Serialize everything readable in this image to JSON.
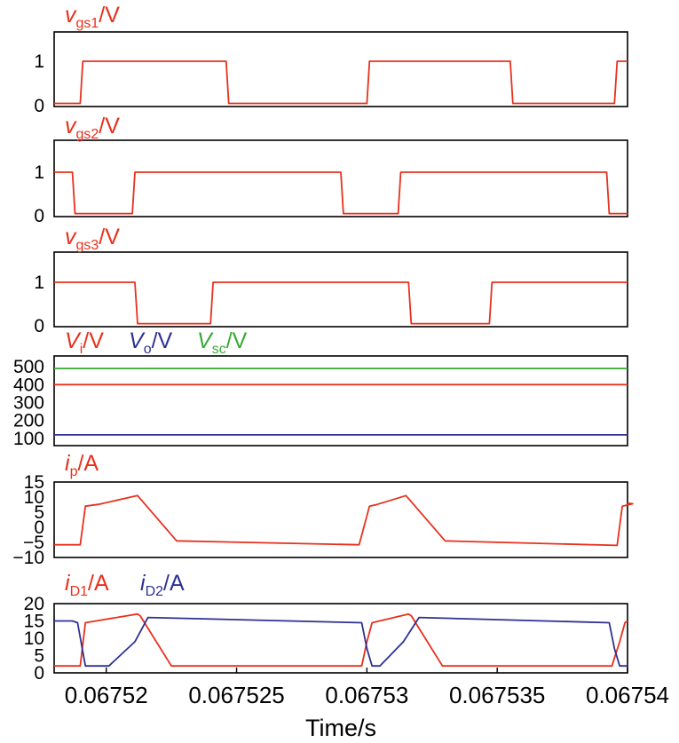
{
  "colors": {
    "red": "#e8301c",
    "blue": "#2e3192",
    "green": "#39a935"
  },
  "chart_data": [
    {
      "type": "line",
      "title": {
        "var": "v",
        "sub": "gs1",
        "unit": "/V",
        "color": "red"
      },
      "xlim": [
        0.067518,
        0.06754
      ],
      "ylim": [
        0,
        1.1
      ],
      "yticks": [
        "0",
        "1"
      ],
      "series": [
        {
          "color": "red",
          "x": [
            0.067518,
            0.067519,
            0.0675191,
            0.0675246,
            0.0675247,
            0.06753,
            0.0675301,
            0.0675355,
            0.0675356,
            0.0675395,
            0.0675396,
            0.06754
          ],
          "y": [
            0.05,
            0.05,
            1.0,
            1.0,
            0.05,
            0.05,
            1.0,
            1.0,
            0.05,
            0.05,
            1.0,
            1.0
          ]
        }
      ]
    },
    {
      "type": "line",
      "title": {
        "var": "v",
        "sub": "gs2",
        "unit": "/V",
        "color": "red"
      },
      "xlim": [
        0.067518,
        0.06754
      ],
      "ylim": [
        0,
        1.1
      ],
      "yticks": [
        "0",
        "1"
      ],
      "series": [
        {
          "color": "red",
          "x": [
            0.067518,
            0.0675187,
            0.0675188,
            0.067521,
            0.0675211,
            0.067529,
            0.0675291,
            0.0675312,
            0.0675313,
            0.0675392,
            0.0675393,
            0.06754
          ],
          "y": [
            1.0,
            1.0,
            0.05,
            0.05,
            1.0,
            1.0,
            0.05,
            0.05,
            1.0,
            1.0,
            0.05,
            0.05
          ]
        }
      ]
    },
    {
      "type": "line",
      "title": {
        "var": "v",
        "sub": "gs3",
        "unit": "/V",
        "color": "red"
      },
      "xlim": [
        0.067518,
        0.06754
      ],
      "ylim": [
        0,
        1.1
      ],
      "yticks": [
        "0",
        "1"
      ],
      "series": [
        {
          "color": "red",
          "x": [
            0.067518,
            0.0675211,
            0.0675212,
            0.067524,
            0.0675241,
            0.0675316,
            0.0675317,
            0.0675347,
            0.0675348,
            0.06754
          ],
          "y": [
            1.0,
            1.0,
            0.05,
            0.05,
            1.0,
            1.0,
            0.05,
            0.05,
            1.0,
            1.0
          ]
        }
      ]
    },
    {
      "type": "line",
      "titles": [
        {
          "var": "V",
          "sub": "i",
          "unit": "/V",
          "color": "red"
        },
        {
          "var": "V",
          "sub": "o",
          "unit": "/V",
          "color": "blue"
        },
        {
          "var": "V",
          "sub": "sc",
          "unit": "/V",
          "color": "green"
        }
      ],
      "xlim": [
        0.067518,
        0.06754
      ],
      "ylim": [
        60,
        560
      ],
      "yticks": [
        "100",
        "200",
        "300",
        "400",
        "500"
      ],
      "series": [
        {
          "color": "green",
          "x": [
            0.067518,
            0.06754
          ],
          "y": [
            490,
            490
          ]
        },
        {
          "color": "red",
          "x": [
            0.067518,
            0.06754
          ],
          "y": [
            400,
            400
          ]
        },
        {
          "color": "blue",
          "x": [
            0.067518,
            0.06754
          ],
          "y": [
            120,
            120
          ]
        }
      ]
    },
    {
      "type": "line",
      "title": {
        "var": "i",
        "sub": "p",
        "unit": "/A",
        "color": "red"
      },
      "xlim": [
        0.067518,
        0.06754
      ],
      "ylim": [
        -10,
        15
      ],
      "yticks": [
        "-10",
        "-5",
        "0",
        "5",
        "10",
        "15"
      ],
      "series": [
        {
          "color": "red",
          "x": [
            0.067518,
            0.067519,
            0.0675192,
            0.0675197,
            0.0675212,
            0.0675227,
            0.0675297,
            0.0675301,
            0.0675304,
            0.0675315,
            0.067533,
            0.0675396,
            0.0675398,
            0.0675402,
            0.06754
          ],
          "y": [
            -5.8,
            -5.8,
            7.0,
            7.6,
            10.5,
            -4.5,
            -5.8,
            7.0,
            7.6,
            10.5,
            -4.5,
            -6.0,
            7.0,
            7.8,
            8.0
          ]
        }
      ]
    },
    {
      "type": "line",
      "titles": [
        {
          "var": "i",
          "sub": "D1",
          "unit": "/A",
          "color": "red"
        },
        {
          "var": "i",
          "sub": "D2",
          "unit": "/A",
          "color": "blue"
        }
      ],
      "xlim": [
        0.067518,
        0.06754
      ],
      "ylim": [
        0,
        20
      ],
      "yticks": [
        "0",
        "5",
        "10",
        "15",
        "20"
      ],
      "xticks": [
        {
          "value": 0.06752,
          "label": "0.06752"
        },
        {
          "value": 0.067525,
          "label": "0.067525"
        },
        {
          "value": 0.06753,
          "label": "0.06753"
        },
        {
          "value": 0.067535,
          "label": "0.067535"
        },
        {
          "value": 0.06754,
          "label": "0.06754"
        }
      ],
      "xlabel": "Time/s",
      "series": [
        {
          "color": "red",
          "x": [
            0.067518,
            0.067519,
            0.0675192,
            0.0675212,
            0.0675213,
            0.0675225,
            0.0675298,
            0.06753,
            0.0675302,
            0.0675316,
            0.0675317,
            0.0675329,
            0.0675394,
            0.0675397,
            0.0675399,
            0.06754
          ],
          "y": [
            2,
            2,
            14.5,
            17,
            16.5,
            2,
            2,
            9,
            14.5,
            17,
            16.5,
            2,
            2,
            9,
            14.5,
            15
          ]
        },
        {
          "color": "blue",
          "x": [
            0.067518,
            0.0675187,
            0.0675189,
            0.0675192,
            0.0675201,
            0.0675211,
            0.0675216,
            0.0675298,
            0.06753,
            0.0675302,
            0.0675305,
            0.0675314,
            0.067532,
            0.0675393,
            0.0675395,
            0.0675397,
            0.0675399,
            0.06754
          ],
          "y": [
            15,
            15,
            14.5,
            2,
            2,
            9,
            16,
            14.5,
            7,
            2,
            2,
            9,
            16,
            14.5,
            7,
            2,
            2,
            2
          ]
        }
      ]
    }
  ]
}
